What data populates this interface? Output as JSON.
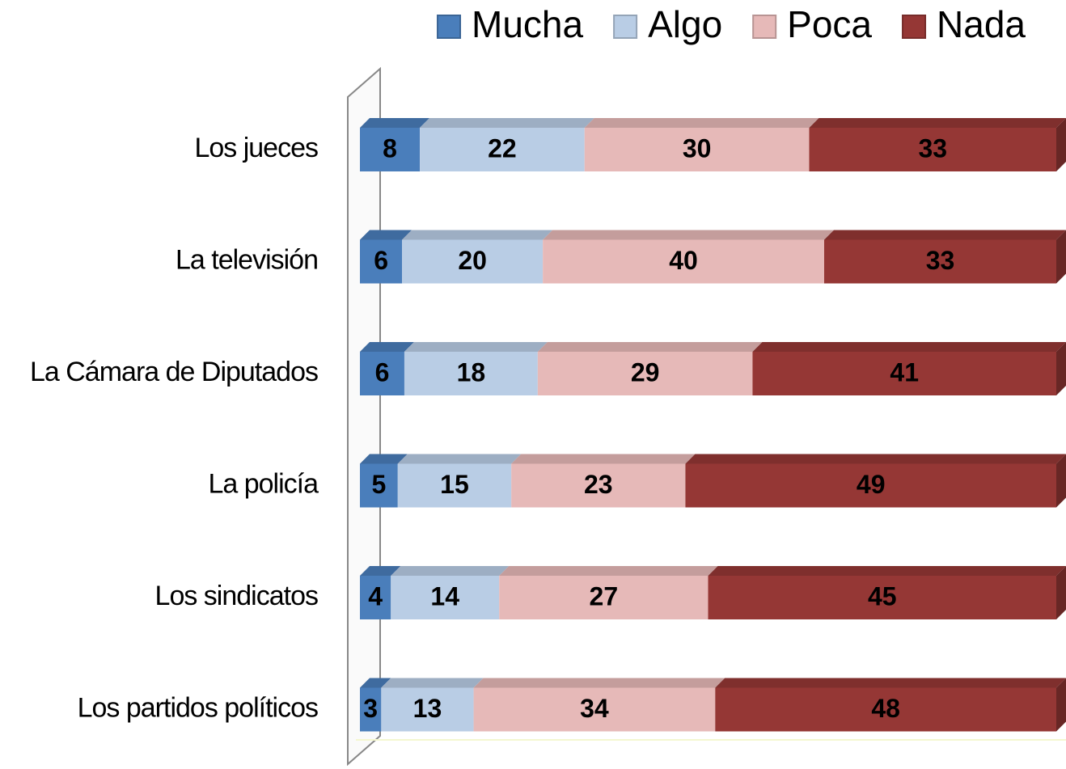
{
  "chart_data": {
    "type": "bar",
    "orientation": "horizontal",
    "stacking": "percent",
    "categories": [
      "Los jueces",
      "La televisión",
      "La Cámara de Diputados",
      "La policía",
      "Los sindicatos",
      "Los partidos políticos"
    ],
    "series": [
      {
        "name": "Mucha",
        "color": "#4a7ebb",
        "values": [
          8,
          6,
          6,
          5,
          4,
          3
        ]
      },
      {
        "name": "Algo",
        "color": "#b9cde5",
        "values": [
          22,
          20,
          18,
          15,
          14,
          13
        ]
      },
      {
        "name": "Poca",
        "color": "#e6b9b8",
        "values": [
          30,
          40,
          29,
          23,
          27,
          34
        ]
      },
      {
        "name": "Nada",
        "color": "#953735",
        "values": [
          33,
          33,
          41,
          49,
          45,
          48
        ]
      }
    ],
    "legend": "top-right"
  }
}
